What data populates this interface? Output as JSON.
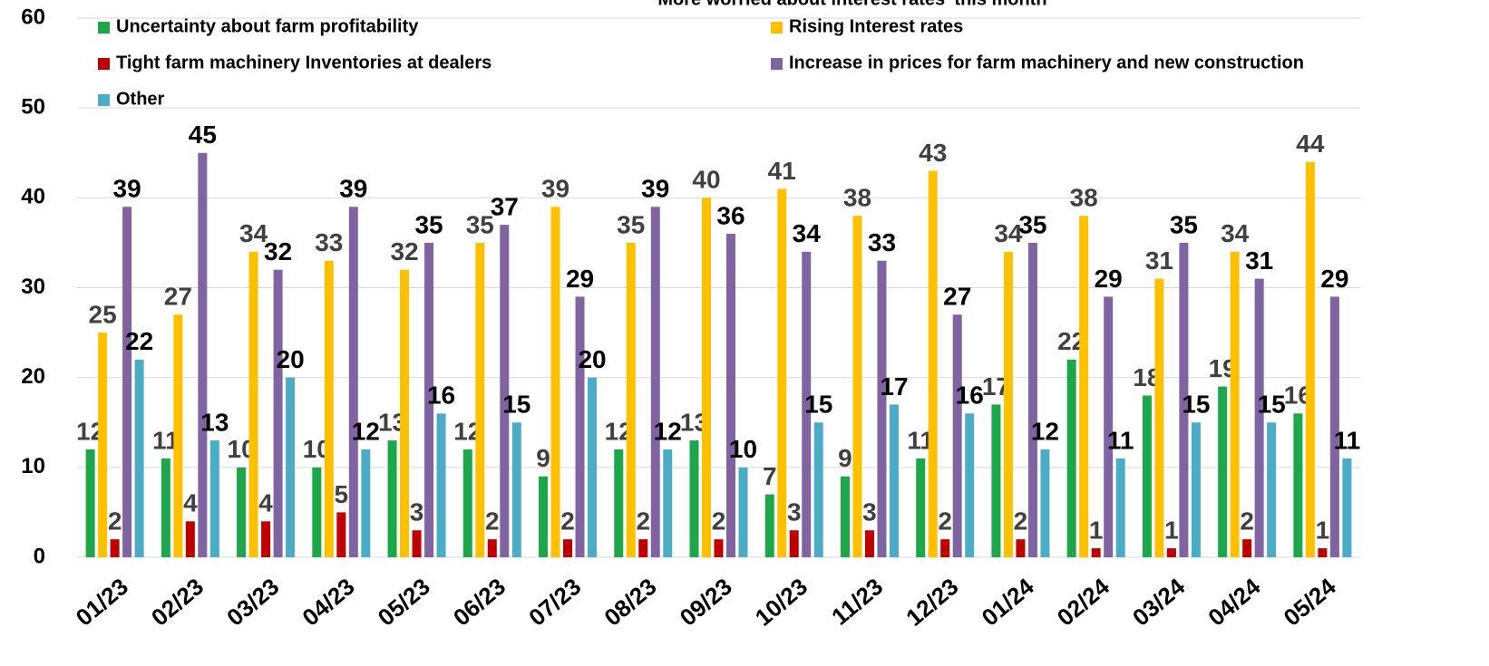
{
  "chart_data": {
    "type": "bar",
    "title": "More worried about interest rates' this month",
    "categories": [
      "01/23",
      "02/23",
      "03/23",
      "04/23",
      "05/23",
      "06/23",
      "07/23",
      "08/23",
      "09/23",
      "10/23",
      "11/23",
      "12/23",
      "01/24",
      "02/24",
      "03/24",
      "04/24",
      "05/24"
    ],
    "series": [
      {
        "name": "Uncertainty about farm profitability",
        "color": "#1ea64b",
        "values": [
          12,
          11,
          10,
          10,
          13,
          12,
          9,
          12,
          13,
          7,
          9,
          11,
          17,
          22,
          18,
          19,
          16
        ]
      },
      {
        "name": "Rising Interest rates",
        "color": "#ffc000",
        "values": [
          25,
          27,
          34,
          33,
          32,
          35,
          39,
          35,
          40,
          41,
          38,
          43,
          34,
          38,
          31,
          34,
          44
        ]
      },
      {
        "name": "Tight farm machinery Inventories at dealers",
        "color": "#c00000",
        "values": [
          2,
          4,
          4,
          5,
          3,
          2,
          2,
          2,
          2,
          3,
          3,
          2,
          2,
          1,
          1,
          2,
          1
        ]
      },
      {
        "name": "Increase in prices for farm machinery and new construction",
        "color": "#8064a2",
        "values": [
          39,
          45,
          32,
          39,
          35,
          37,
          29,
          39,
          36,
          34,
          33,
          27,
          35,
          29,
          35,
          31,
          29
        ]
      },
      {
        "name": "Other",
        "color": "#4bacc6",
        "values": [
          22,
          13,
          20,
          12,
          16,
          15,
          20,
          12,
          10,
          15,
          17,
          16,
          12,
          11,
          15,
          15,
          11
        ]
      }
    ],
    "ylim": [
      0,
      60
    ],
    "yticks": [
      0,
      10,
      20,
      30,
      40,
      50,
      60
    ],
    "grid": true,
    "legend": "top"
  }
}
